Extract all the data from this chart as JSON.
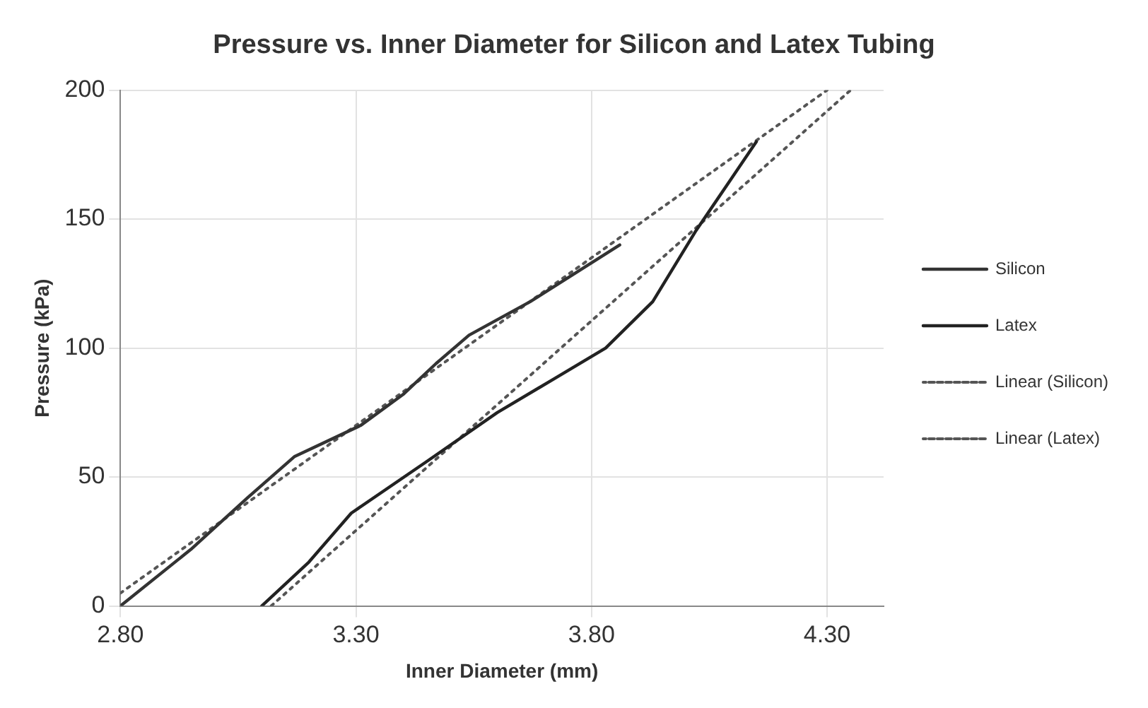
{
  "chart_data": {
    "type": "line",
    "title": "Pressure vs. Inner Diameter for Silicon and Latex Tubing",
    "xlabel": "Inner Diameter (mm)",
    "ylabel": "Pressure (kPa)",
    "xlim": [
      2.8,
      4.42
    ],
    "xticks": [
      {
        "value": 2.8,
        "label": "2.80"
      },
      {
        "value": 3.3,
        "label": "3.30"
      },
      {
        "value": 3.8,
        "label": "3.80"
      },
      {
        "value": 4.3,
        "label": "4.30"
      }
    ],
    "ylim": [
      0,
      200
    ],
    "yticks": [
      0,
      50,
      100,
      150,
      200
    ],
    "grid": true,
    "legend": "right",
    "marker": "none",
    "series": [
      {
        "name": "Silicon",
        "color": "#333333",
        "line_style": "solid",
        "x": [
          2.8,
          2.95,
          3.07,
          3.17,
          3.31,
          3.4,
          3.47,
          3.54,
          3.67,
          3.86
        ],
        "values": [
          0,
          22,
          42,
          58,
          70,
          82,
          94,
          105,
          118,
          140
        ]
      },
      {
        "name": "Latex",
        "color": "#222222",
        "line_style": "solid",
        "x": [
          3.1,
          3.2,
          3.29,
          3.45,
          3.6,
          3.72,
          3.83,
          3.93,
          4.02,
          4.15
        ],
        "values": [
          0,
          17,
          36,
          56,
          75,
          88,
          100,
          118,
          145,
          180
        ]
      },
      {
        "name": "Linear (Silicon)",
        "color": "#555555",
        "line_style": "dotted",
        "x": [
          2.8,
          4.3
        ],
        "values": [
          5,
          200
        ]
      },
      {
        "name": "Linear (Latex)",
        "color": "#555555",
        "line_style": "dotted",
        "x": [
          3.12,
          4.35
        ],
        "values": [
          0,
          200
        ]
      }
    ]
  }
}
